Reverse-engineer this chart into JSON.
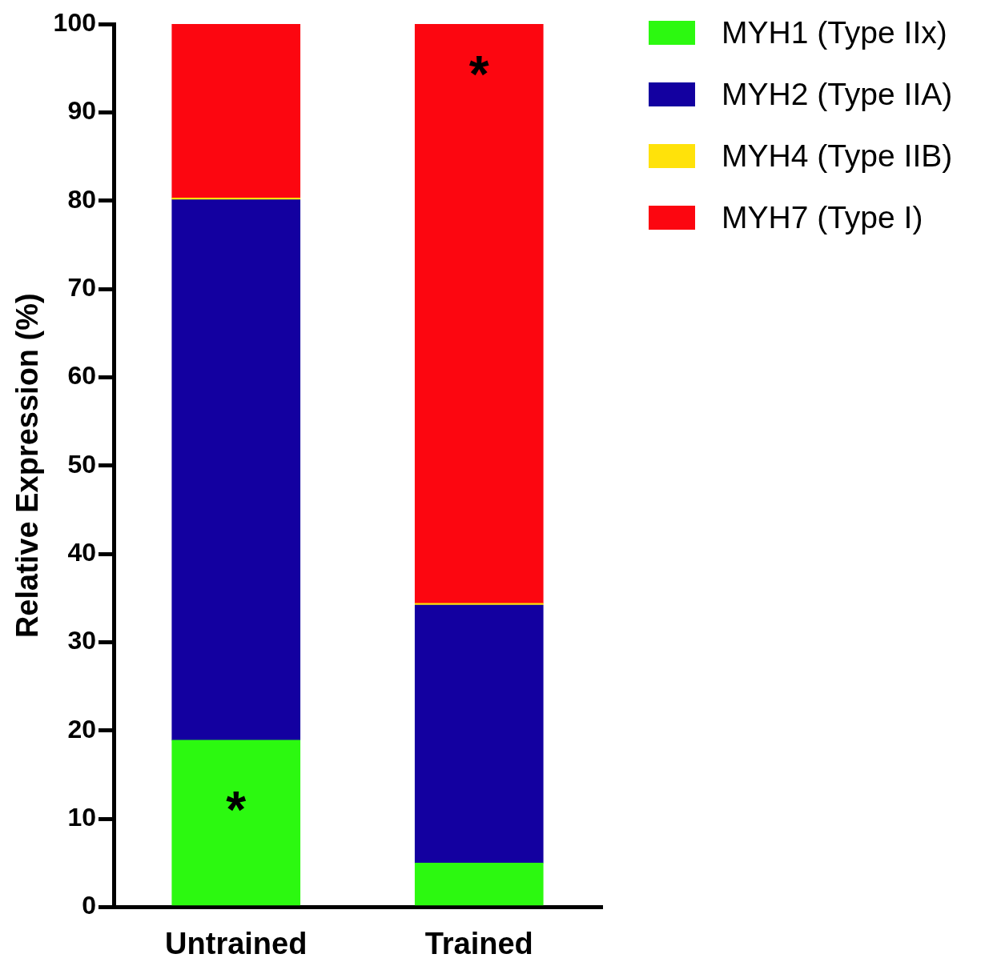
{
  "chart_data": {
    "type": "bar",
    "stacked": true,
    "ylabel": "Relative Expression (%)",
    "categories": [
      "Untrained",
      "Trained"
    ],
    "series": [
      {
        "name": "MYH1 (Type IIx)",
        "color": "#2cf910",
        "values": [
          18.9,
          5.0
        ]
      },
      {
        "name": "MYH2 (Type IIA)",
        "color": "#1300a0",
        "values": [
          61.2,
          29.2
        ]
      },
      {
        "name": "MYH4 (Type IIB)",
        "color": "#ffe20a",
        "values": [
          0.2,
          0.2
        ]
      },
      {
        "name": "MYH7 (Type I)",
        "color": "#fc0610",
        "values": [
          19.7,
          65.6
        ]
      }
    ],
    "ylim": [
      0,
      100
    ],
    "yticks": [
      0,
      10,
      20,
      30,
      40,
      50,
      60,
      70,
      80,
      90,
      100
    ],
    "grid": false,
    "legend": "top right",
    "annotations": [
      "*",
      "*"
    ]
  }
}
